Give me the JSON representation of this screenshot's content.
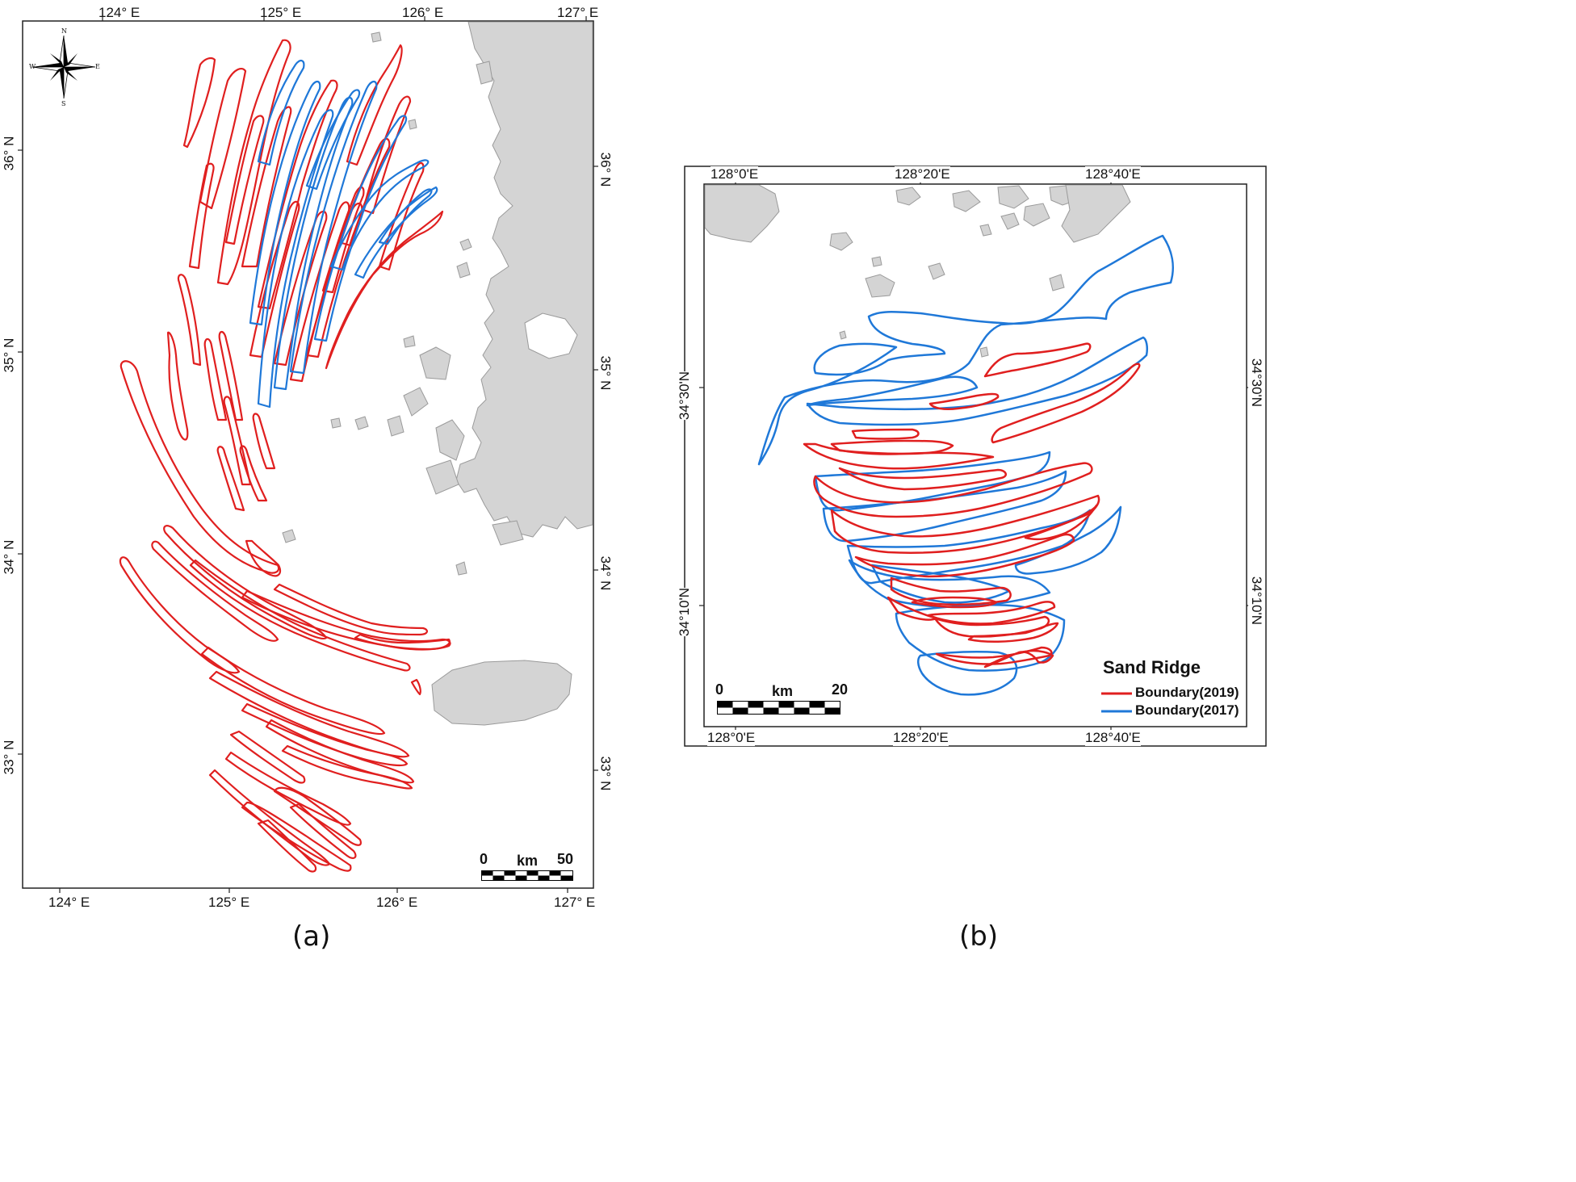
{
  "colors": {
    "boundary_2019": "#e01f1f",
    "boundary_2017": "#1f78d8",
    "land": "#d4d4d4",
    "land_stroke": "#9a9a9a",
    "frame": "#222222"
  },
  "panel_a": {
    "caption": "(a)",
    "top_lon_labels": [
      "124° E",
      "125° E",
      "126° E",
      "127° E"
    ],
    "bottom_lon_labels": [
      "124° E",
      "125° E",
      "126° E",
      "127° E"
    ],
    "left_lat_labels": [
      "36° N",
      "35° N",
      "34° N",
      "33° N"
    ],
    "right_lat_labels": [
      "36° N",
      "35° N",
      "34° N",
      "33° N"
    ],
    "compass": {
      "n": "N",
      "s": "S",
      "e": "E",
      "w": "W",
      "icon": "compass-rose-icon"
    },
    "scale": {
      "start": "0",
      "unit": "km",
      "end": "50"
    }
  },
  "panel_b": {
    "caption": "(b)",
    "top_lon_labels": [
      "128°0'E",
      "128°20'E",
      "128°40'E"
    ],
    "bottom_lon_labels": [
      "128°0'E",
      "128°20'E",
      "128°40'E"
    ],
    "left_lat_labels": [
      "34°30'N",
      "34°10'N"
    ],
    "right_lat_labels": [
      "34°30'N",
      "34°10'N"
    ],
    "scale": {
      "start": "0",
      "unit": "km",
      "end": "20"
    },
    "legend": {
      "title": "Sand Ridge",
      "items": [
        {
          "label": "Boundary(2019)",
          "color": "#e01f1f"
        },
        {
          "label": "Boundary(2017)",
          "color": "#1f78d8"
        }
      ]
    }
  }
}
